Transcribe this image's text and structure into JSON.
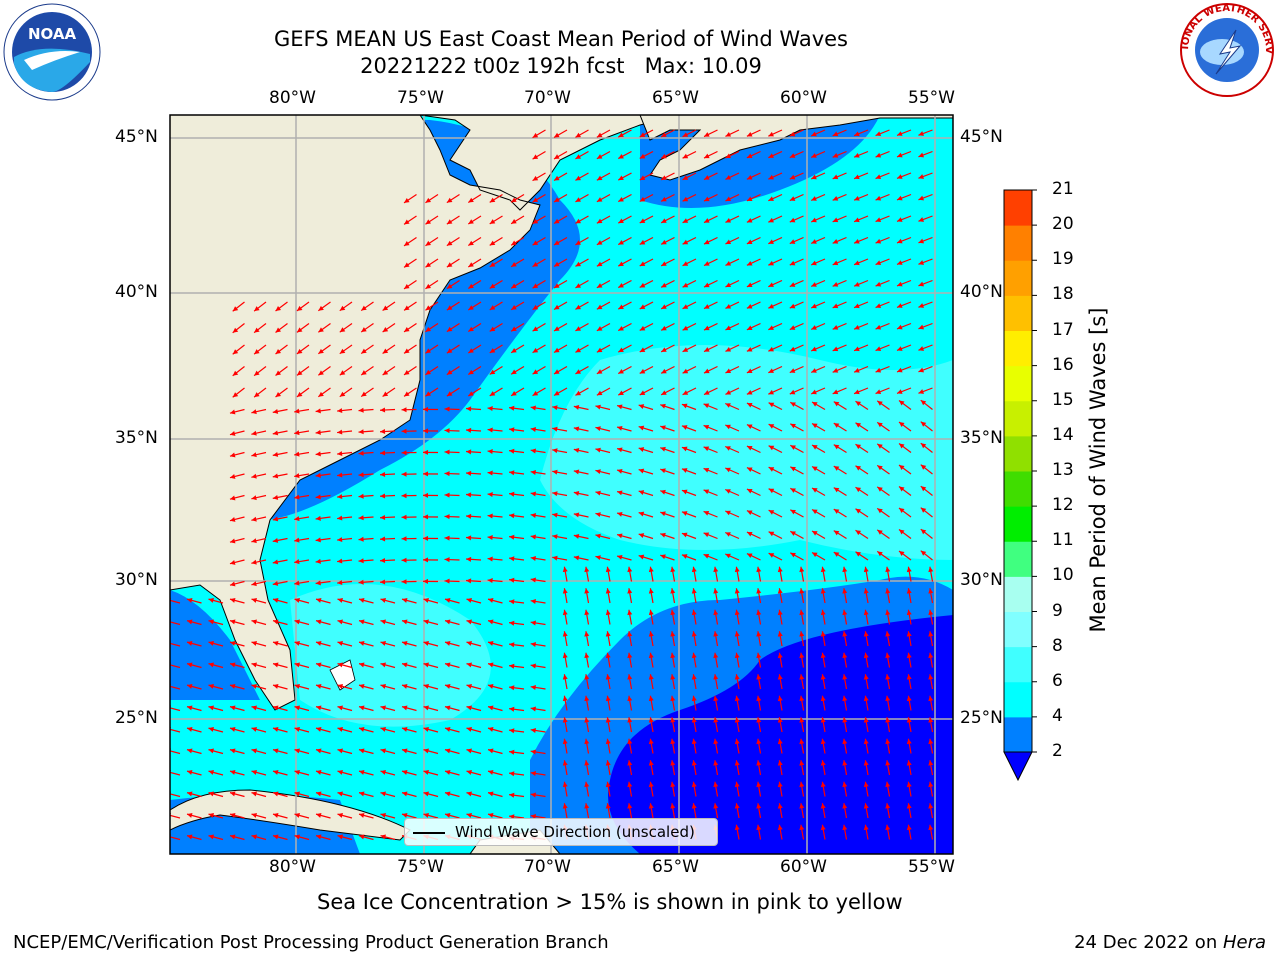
{
  "title": {
    "line1": "GEFS MEAN US East Coast Mean Period of Wind Waves",
    "line2": "20221222 t00z 192h fcst   Max: 10.09"
  },
  "map": {
    "lon_labels": [
      "80°W",
      "75°W",
      "70°W",
      "65°W",
      "60°W",
      "55°W"
    ],
    "lat_labels": [
      "45°N",
      "40°N",
      "35°N",
      "30°N",
      "25°N"
    ],
    "legend_label": "Wind Wave Direction (unscaled)",
    "land_color": "#efedda",
    "arrow_color": "#ff0000"
  },
  "colorbar": {
    "label": "Mean Period of Wind Waves [s]",
    "ticks": [
      "2",
      "4",
      "6",
      "8",
      "9",
      "10",
      "11",
      "12",
      "13",
      "14",
      "15",
      "16",
      "17",
      "18",
      "19",
      "20",
      "21"
    ],
    "colors": [
      "#0080ff",
      "#00ffff",
      "#40ffff",
      "#80ffff",
      "#a8fff0",
      "#40ff80",
      "#00ee00",
      "#40dd00",
      "#90e000",
      "#c8f000",
      "#e8ff00",
      "#ffee00",
      "#ffc000",
      "#ffa000",
      "#ff8000",
      "#ff4000",
      "#ff0000"
    ],
    "under_color": "#0000ff"
  },
  "note": "Sea Ice Concentration > 15% is shown in pink to yellow",
  "footer": {
    "left": "NCEP/EMC/Verification Post Processing Product Generation Branch",
    "right_prefix": "24 Dec 2022 on ",
    "right_host": "Hera"
  },
  "logos": {
    "noaa_text": "NOAA",
    "nws_text": "NATIONAL WEATHER SERVICE"
  }
}
